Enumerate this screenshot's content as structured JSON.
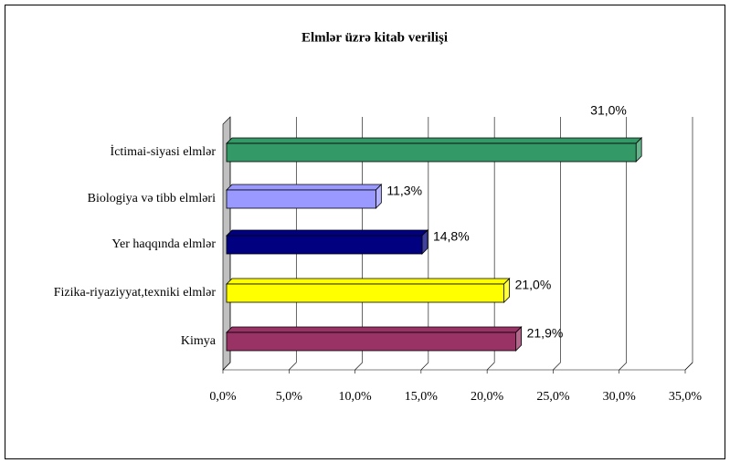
{
  "chart_data": {
    "type": "bar",
    "orientation": "horizontal",
    "title": "Elmlər üzrə kitab verilişi",
    "categories": [
      "İctimai-siyasi elmlər",
      "Biologiya və tibb elmləri",
      "Yer haqqında elmlər",
      "Fizika-riyaziyyat,texniki elmlər",
      "Kimya"
    ],
    "values": [
      31.0,
      11.3,
      14.8,
      21.0,
      21.9
    ],
    "value_labels": [
      "31,0%",
      "11,3%",
      "14,8%",
      "21,0%",
      "21,9%"
    ],
    "colors": [
      "#339966",
      "#9999ff",
      "#000080",
      "#ffff00",
      "#993366"
    ],
    "xlim": [
      0,
      35
    ],
    "xticks": [
      {
        "value": 0,
        "label": "0,0%"
      },
      {
        "value": 5,
        "label": "5,0%"
      },
      {
        "value": 10,
        "label": "10,0%"
      },
      {
        "value": 15,
        "label": "15,0%"
      },
      {
        "value": 20,
        "label": "20,0%"
      },
      {
        "value": 25,
        "label": "25,0%"
      },
      {
        "value": 30,
        "label": "30,0%"
      },
      {
        "value": 35,
        "label": "35,0%"
      }
    ],
    "grid": true
  }
}
